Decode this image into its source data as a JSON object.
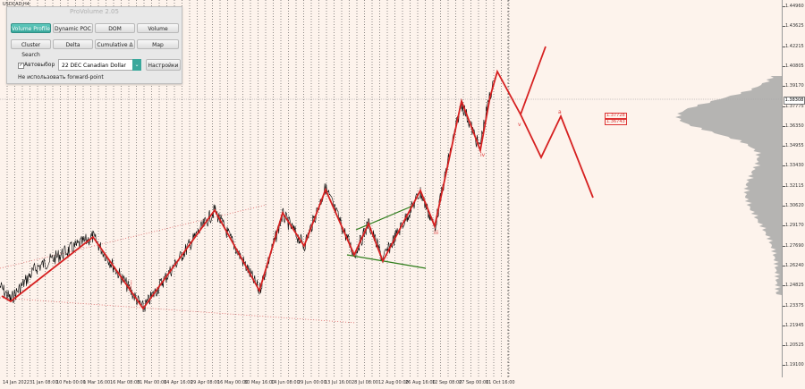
{
  "symbol": "USDCAD,H4",
  "current_price": "1.38308",
  "panel": {
    "title": "ProVolume 2.05",
    "buttons": [
      "Volume Profile",
      "Dynamic POC",
      "DOM",
      "Volume",
      "Cluster Search",
      "Delta",
      "Cumulative Δ",
      "Map"
    ],
    "active_button": "Volume Profile",
    "auto_label": "Автовыбор",
    "contract": "22 DEC Canadian Dollar",
    "settings_label": "Настройки",
    "forward_label": "Не использовать forward-point"
  },
  "price_axis_labels": [
    "1.44960",
    "1.43625",
    "1.42215",
    "1.40805",
    "1.39170",
    "1.37775",
    "1.36350",
    "1.34955",
    "1.33430",
    "1.32115",
    "1.30620",
    "1.29170",
    "1.27690",
    "1.26240",
    "1.24825",
    "1.23375",
    "1.21945",
    "1.20525",
    "1.19100"
  ],
  "date_labels": [
    "14 Jan 2022",
    "31 Jan 08:00",
    "10 Feb 00:00",
    "1 Mar 16:00",
    "16 Mar 08:00",
    "31 Mar 00:00",
    "14 Apr 16:00",
    "29 Apr 08:00",
    "16 May 00:00",
    "30 May 16:00",
    "14 Jun 08:00",
    "29 Jun 00:00",
    "13 Jul 16:00",
    "28 Jul 08:00",
    "12 Aug 00:00",
    "26 Aug 16:00",
    "12 Sep 08:00",
    "27 Sep 00:00",
    "11 Oct 16:00"
  ],
  "wave_labels": [
    "i",
    "ii",
    "iii",
    "iv",
    "v",
    "a",
    "b",
    "c",
    "iii",
    "iv"
  ],
  "levels": [
    "1.37728",
    "1.36743"
  ],
  "colors": {
    "wave": "#d62020",
    "trendline": "#2e7d1a",
    "price": "#000000",
    "profile": "#a8a8a8",
    "grid": "#444444",
    "dotted_red": "#d66"
  }
}
